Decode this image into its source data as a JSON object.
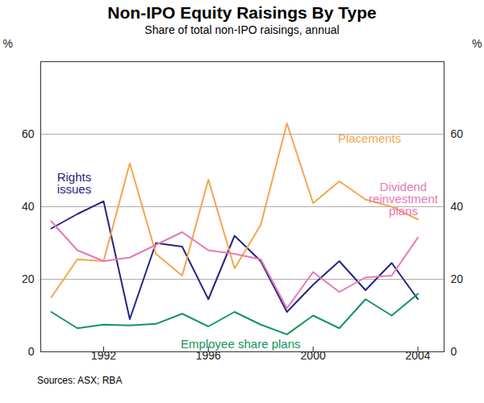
{
  "chart_data": {
    "type": "line",
    "title": "Non-IPO Equity Raisings By Type",
    "subtitle": "Share of total non-IPO raisings, annual",
    "caption": "Sources: ASX; RBA",
    "y_label": "%",
    "x": [
      1990,
      1991,
      1992,
      1993,
      1994,
      1995,
      1996,
      1997,
      1998,
      1999,
      2000,
      2001,
      2002,
      2003,
      2004
    ],
    "xlim": [
      1989.6,
      2005
    ],
    "xticks": [
      1992,
      1996,
      2000,
      2004
    ],
    "ylim": [
      0,
      80
    ],
    "yticks": [
      0,
      20,
      40,
      60
    ],
    "grid": true,
    "series": [
      {
        "name": "Rights issues",
        "color": "#262682",
        "values": [
          34,
          38,
          41.5,
          9,
          30,
          29,
          14.5,
          32,
          25,
          11,
          18.5,
          25,
          17,
          24.5,
          14.5
        ]
      },
      {
        "name": "Placements",
        "color": "#f6a54c",
        "values": [
          15,
          25.5,
          25,
          52,
          27,
          21,
          47.5,
          23,
          35,
          63,
          41,
          47,
          42,
          40,
          36.5
        ]
      },
      {
        "name": "Dividend reinvestment plans",
        "color": "#e878b6",
        "values": [
          36,
          28,
          25,
          26,
          29.5,
          33,
          28,
          27,
          25.5,
          12,
          22,
          16.5,
          20.5,
          21,
          31.5
        ]
      },
      {
        "name": "Employee share plans",
        "color": "#13955a",
        "values": [
          11,
          6.5,
          7.5,
          7.3,
          7.7,
          10.5,
          7,
          11,
          7.5,
          4.8,
          10,
          6.5,
          14.5,
          10,
          16
        ]
      }
    ]
  }
}
